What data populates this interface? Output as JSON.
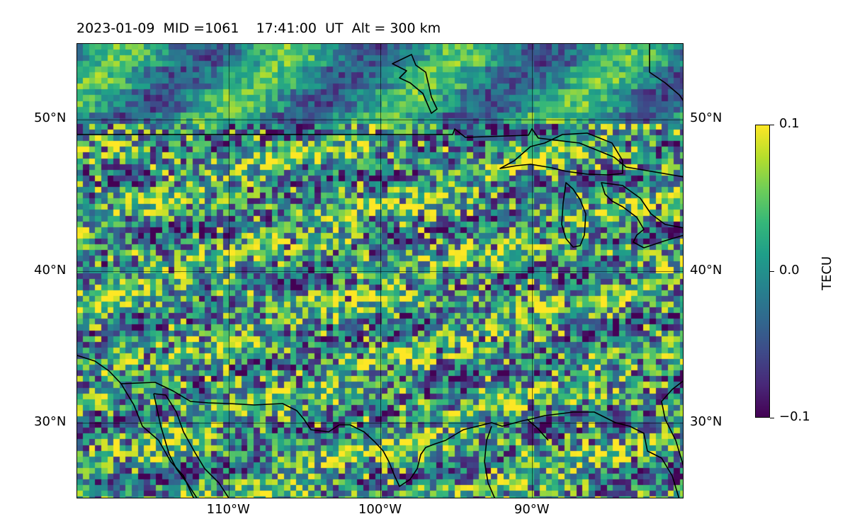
{
  "title": "2023-01-09  MID =1061    17:41:00  UT  Alt = 300 km",
  "map": {
    "lon_range": [
      -120,
      -80
    ],
    "lat_range": [
      25,
      55
    ],
    "lat_ticks": [
      {
        "value": 50,
        "label": "50°N"
      },
      {
        "value": 40,
        "label": "40°N"
      },
      {
        "value": 30,
        "label": "30°N"
      }
    ],
    "lon_ticks": [
      {
        "value": -110,
        "label": "110°W"
      },
      {
        "value": -100,
        "label": "100°W"
      },
      {
        "value": -90,
        "label": "90°W"
      }
    ],
    "gridlines": true,
    "coastline_color": "#000000",
    "field": "TEC perturbation (dTEC)",
    "colormap": "viridis"
  },
  "colorbar": {
    "label": "TECU",
    "min": -0.1,
    "max": 0.1,
    "ticks": [
      {
        "value": 0.1,
        "label": "0.1"
      },
      {
        "value": 0.0,
        "label": "0.0"
      },
      {
        "value": -0.1,
        "label": "−0.1"
      }
    ],
    "colors": [
      "#440154",
      "#3b528b",
      "#21918c",
      "#5ec962",
      "#fde725"
    ]
  }
}
